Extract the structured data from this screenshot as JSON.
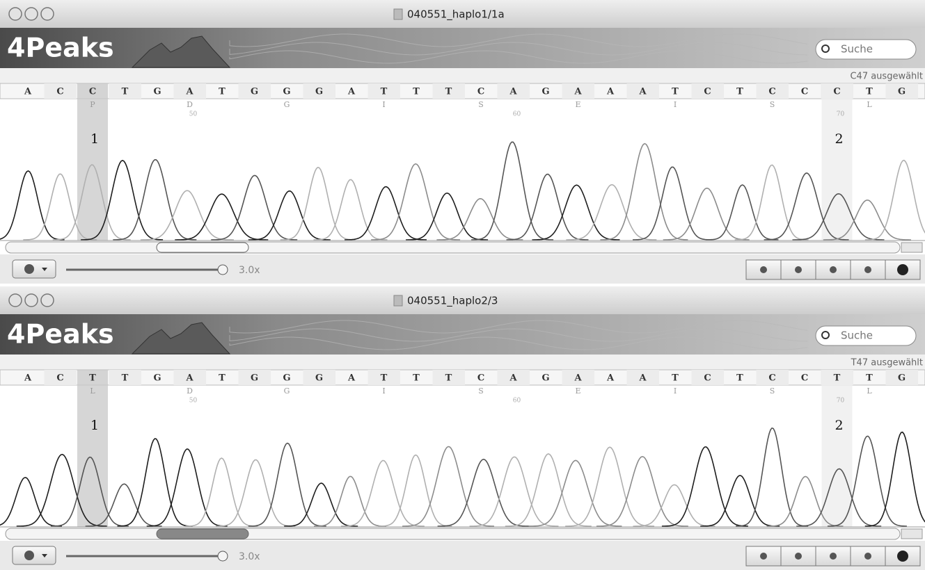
{
  "windows": [
    {
      "title": "040551_haplo1/1a",
      "app_name": "4Peaks",
      "search_placeholder": "Suche",
      "status": "C47 ausgewählt",
      "bases": [
        "A",
        "C",
        "C",
        "T",
        "G",
        "A",
        "T",
        "G",
        "G",
        "G",
        "A",
        "T",
        "T",
        "T",
        "C",
        "A",
        "G",
        "A",
        "A",
        "A",
        "T",
        "C",
        "T",
        "C",
        "C",
        "C",
        "T",
        "G"
      ],
      "amino_acids": [
        null,
        null,
        "P",
        null,
        null,
        "D",
        null,
        null,
        "G",
        null,
        null,
        "I",
        null,
        null,
        "S",
        null,
        null,
        "E",
        null,
        null,
        "I",
        null,
        null,
        "S",
        null,
        null,
        "L",
        null
      ],
      "positions": [
        null,
        null,
        null,
        null,
        null,
        "50",
        null,
        null,
        null,
        null,
        null,
        null,
        null,
        null,
        null,
        "60",
        null,
        null,
        null,
        null,
        null,
        null,
        null,
        null,
        null,
        "70",
        null,
        null
      ],
      "markers": [
        "1",
        "2"
      ],
      "zoom": "3.0x"
    },
    {
      "title": "040551_haplo2/3",
      "app_name": "4Peaks",
      "search_placeholder": "Suche",
      "status": "T47 ausgewählt",
      "bases": [
        "A",
        "C",
        "T",
        "T",
        "G",
        "A",
        "T",
        "G",
        "G",
        "G",
        "A",
        "T",
        "T",
        "T",
        "C",
        "A",
        "G",
        "A",
        "A",
        "A",
        "T",
        "C",
        "T",
        "C",
        "C",
        "T",
        "T",
        "G"
      ],
      "amino_acids": [
        null,
        null,
        "L",
        null,
        null,
        "D",
        null,
        null,
        "G",
        null,
        null,
        "I",
        null,
        null,
        "S",
        null,
        null,
        "E",
        null,
        null,
        "I",
        null,
        null,
        "S",
        null,
        null,
        "L",
        null
      ],
      "positions": [
        null,
        null,
        null,
        null,
        null,
        "50",
        null,
        null,
        null,
        null,
        null,
        null,
        null,
        null,
        null,
        "60",
        null,
        null,
        null,
        null,
        null,
        null,
        null,
        null,
        null,
        "70",
        null,
        null
      ],
      "markers": [
        "1",
        "2"
      ],
      "zoom": "3.0x"
    }
  ]
}
